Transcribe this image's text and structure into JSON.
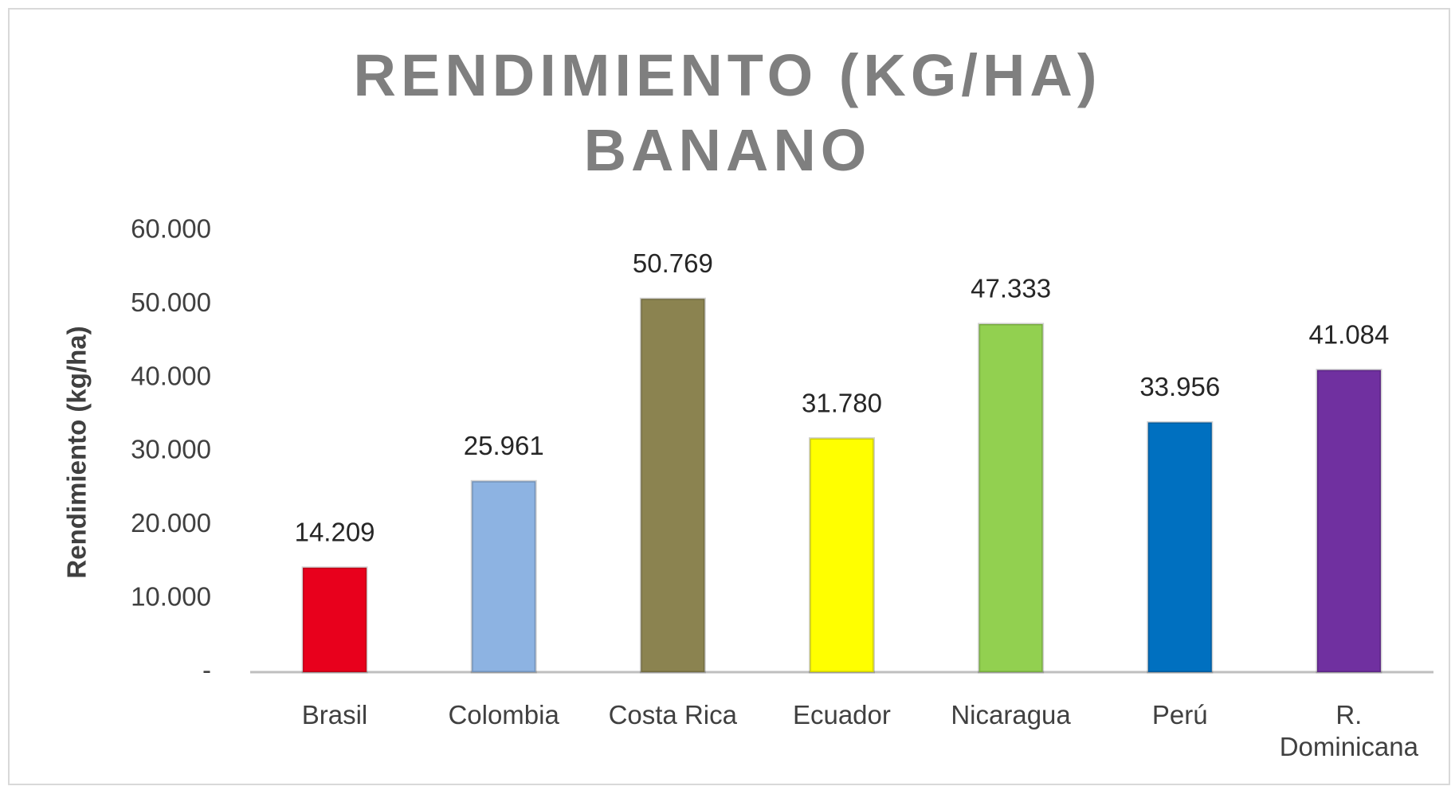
{
  "chart_data": {
    "type": "bar",
    "title": "RENDIMIENTO (KG/HA)\nBANANO",
    "y_label": "Rendimiento (kg/ha)",
    "categories": [
      "Brasil",
      "Colombia",
      "Costa Rica",
      "Ecuador",
      "Nicaragua",
      "Perú",
      "R.\nDominicana"
    ],
    "values": [
      14209,
      25961,
      50769,
      31780,
      47333,
      33956,
      41084
    ],
    "value_labels": [
      "14.209",
      "25.961",
      "50.769",
      "31.780",
      "47.333",
      "33.956",
      "41.084"
    ],
    "colors": [
      "#e8001c",
      "#8db3e2",
      "#8b8350",
      "#ffff00",
      "#92d050",
      "#0070c0",
      "#7030a0"
    ],
    "ylim": [
      0,
      60000
    ],
    "yticks": [
      {
        "value": 0,
        "label": "-"
      },
      {
        "value": 10000,
        "label": "10.000"
      },
      {
        "value": 20000,
        "label": "20.000"
      },
      {
        "value": 30000,
        "label": "30.000"
      },
      {
        "value": 40000,
        "label": "40.000"
      },
      {
        "value": 50000,
        "label": "50.000"
      },
      {
        "value": 60000,
        "label": "60.000"
      }
    ],
    "grid": false
  }
}
